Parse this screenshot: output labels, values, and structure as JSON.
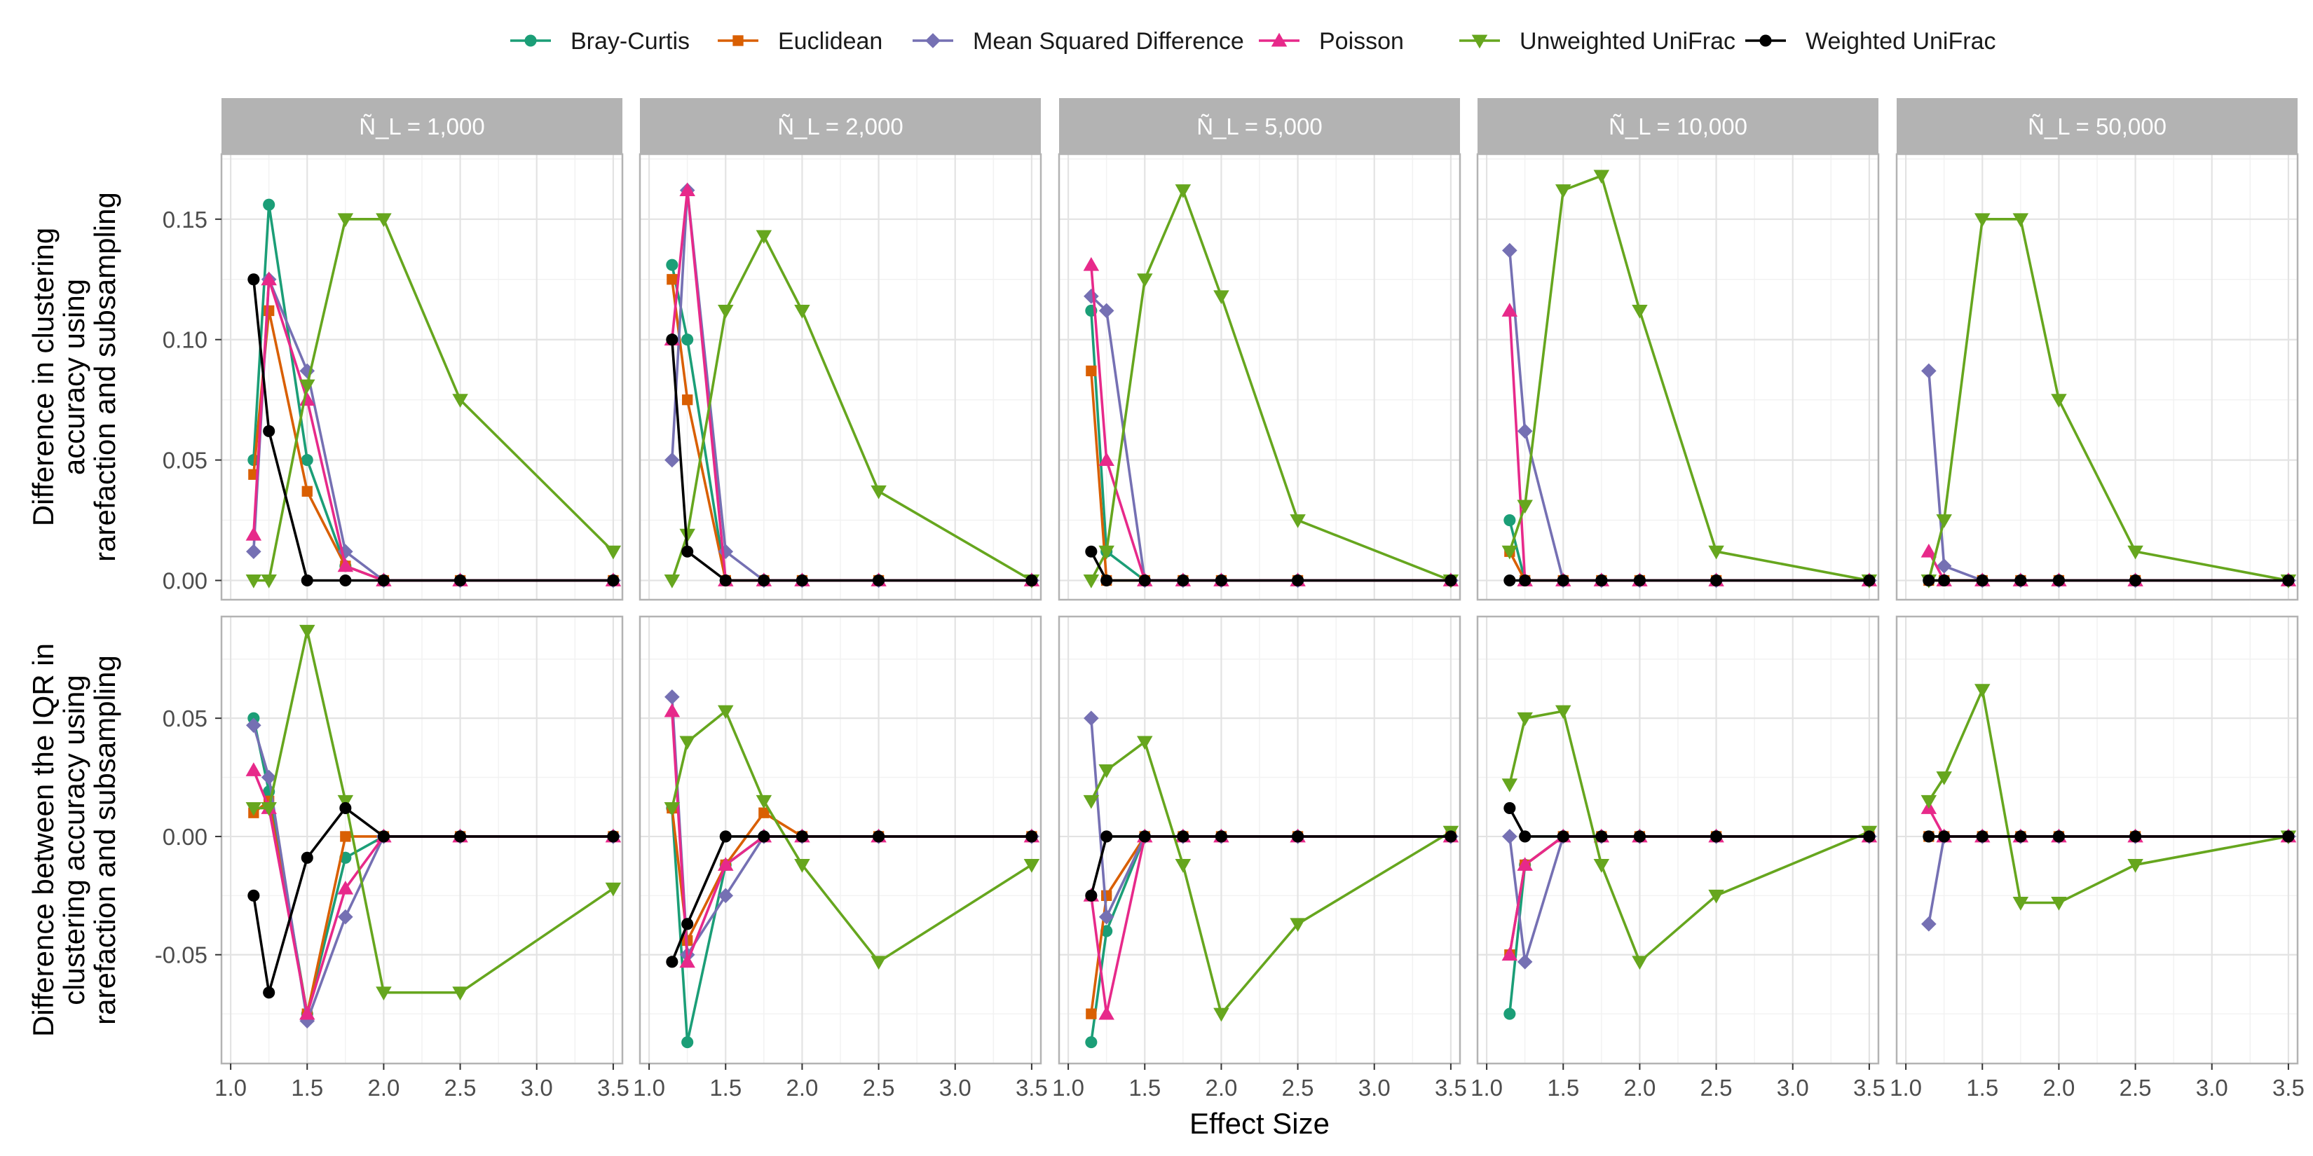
{
  "chart_data": {
    "type": "line",
    "xlabel": "Effect Size",
    "legend_position": "top",
    "grid": true,
    "facet_labels": [
      "Ñ_L = 1,000",
      "Ñ_L = 2,000",
      "Ñ_L = 5,000",
      "Ñ_L = 10,000",
      "Ñ_L = 50,000"
    ],
    "x_ticks": [
      "1.0",
      "1.5",
      "2.0",
      "2.5",
      "3.0",
      "3.5"
    ],
    "x": [
      1.15,
      1.25,
      1.5,
      1.75,
      2.0,
      2.5,
      3.5
    ],
    "xlim": [
      0.94,
      3.56
    ],
    "rows": [
      {
        "ylabel": [
          "Difference in clustering",
          "accuracy using",
          "rarefaction and subsampling"
        ],
        "ylim": [
          -0.008,
          0.177
        ],
        "y_ticks": [
          "0.00",
          "0.05",
          "0.10",
          "0.15"
        ],
        "y_tick_values": [
          0,
          0.05,
          0.1,
          0.15
        ],
        "panels": [
          {
            "series": [
              {
                "name": "Bray-Curtis",
                "values": [
                  0.05,
                  0.156,
                  0.05,
                  0.006,
                  0,
                  0,
                  0
                ]
              },
              {
                "name": "Euclidean",
                "values": [
                  0.044,
                  0.112,
                  0.037,
                  0.006,
                  0,
                  0,
                  0
                ]
              },
              {
                "name": "Mean Squared Difference",
                "values": [
                  0.012,
                  0.125,
                  0.087,
                  0.012,
                  0,
                  0,
                  0
                ]
              },
              {
                "name": "Poisson",
                "values": [
                  0.019,
                  0.125,
                  0.075,
                  0.006,
                  0,
                  0,
                  0
                ]
              },
              {
                "name": "Unweighted UniFrac",
                "values": [
                  0,
                  0,
                  0.081,
                  0.15,
                  0.15,
                  0.075,
                  0.012
                ]
              },
              {
                "name": "Weighted UniFrac",
                "values": [
                  0.125,
                  0.062,
                  0,
                  0,
                  0,
                  0,
                  0
                ]
              }
            ]
          },
          {
            "series": [
              {
                "name": "Bray-Curtis",
                "values": [
                  0.131,
                  0.1,
                  0,
                  0,
                  0,
                  0,
                  0
                ]
              },
              {
                "name": "Euclidean",
                "values": [
                  0.125,
                  0.075,
                  0,
                  0,
                  0,
                  0,
                  0
                ]
              },
              {
                "name": "Mean Squared Difference",
                "values": [
                  0.05,
                  0.162,
                  0.012,
                  0,
                  0,
                  0,
                  0
                ]
              },
              {
                "name": "Poisson",
                "values": [
                  0.1,
                  0.162,
                  0,
                  0,
                  0,
                  0,
                  0
                ]
              },
              {
                "name": "Unweighted UniFrac",
                "values": [
                  0,
                  0.019,
                  0.112,
                  0.143,
                  0.112,
                  0.037,
                  0
                ]
              },
              {
                "name": "Weighted UniFrac",
                "values": [
                  0.1,
                  0.012,
                  0,
                  0,
                  0,
                  0,
                  0
                ]
              }
            ]
          },
          {
            "series": [
              {
                "name": "Bray-Curtis",
                "values": [
                  0.112,
                  0.012,
                  0,
                  0,
                  0,
                  0,
                  0
                ]
              },
              {
                "name": "Euclidean",
                "values": [
                  0.087,
                  0,
                  0,
                  0,
                  0,
                  0,
                  0
                ]
              },
              {
                "name": "Mean Squared Difference",
                "values": [
                  0.118,
                  0.112,
                  0,
                  0,
                  0,
                  0,
                  0
                ]
              },
              {
                "name": "Poisson",
                "values": [
                  0.131,
                  0.05,
                  0,
                  0,
                  0,
                  0,
                  0
                ]
              },
              {
                "name": "Unweighted UniFrac",
                "values": [
                  0,
                  0.012,
                  0.125,
                  0.162,
                  0.118,
                  0.025,
                  0
                ]
              },
              {
                "name": "Weighted UniFrac",
                "values": [
                  0.012,
                  0,
                  0,
                  0,
                  0,
                  0,
                  0
                ]
              }
            ]
          },
          {
            "series": [
              {
                "name": "Bray-Curtis",
                "values": [
                  0.025,
                  0,
                  0,
                  0,
                  0,
                  0,
                  0
                ]
              },
              {
                "name": "Euclidean",
                "values": [
                  0.012,
                  0,
                  0,
                  0,
                  0,
                  0,
                  0
                ]
              },
              {
                "name": "Mean Squared Difference",
                "values": [
                  0.137,
                  0.062,
                  0,
                  0,
                  0,
                  0,
                  0
                ]
              },
              {
                "name": "Poisson",
                "values": [
                  0.112,
                  0,
                  0,
                  0,
                  0,
                  0,
                  0
                ]
              },
              {
                "name": "Unweighted UniFrac",
                "values": [
                  0.012,
                  0.031,
                  0.162,
                  0.168,
                  0.112,
                  0.012,
                  0
                ]
              },
              {
                "name": "Weighted UniFrac",
                "values": [
                  0,
                  0,
                  0,
                  0,
                  0,
                  0,
                  0
                ]
              }
            ]
          },
          {
            "series": [
              {
                "name": "Bray-Curtis",
                "values": [
                  0,
                  0,
                  0,
                  0,
                  0,
                  0,
                  0
                ]
              },
              {
                "name": "Euclidean",
                "values": [
                  0,
                  0,
                  0,
                  0,
                  0,
                  0,
                  0
                ]
              },
              {
                "name": "Mean Squared Difference",
                "values": [
                  0.087,
                  0.006,
                  0,
                  0,
                  0,
                  0,
                  0
                ]
              },
              {
                "name": "Poisson",
                "values": [
                  0.012,
                  0,
                  0,
                  0,
                  0,
                  0,
                  0
                ]
              },
              {
                "name": "Unweighted UniFrac",
                "values": [
                  0,
                  0.025,
                  0.15,
                  0.15,
                  0.075,
                  0.012,
                  0
                ]
              },
              {
                "name": "Weighted UniFrac",
                "values": [
                  0,
                  0,
                  0,
                  0,
                  0,
                  0,
                  0
                ]
              }
            ]
          }
        ]
      },
      {
        "ylabel": [
          "Difference between the IQR in",
          "clustering accuracy using",
          "rarefaction and subsampling"
        ],
        "ylim": [
          -0.096,
          0.093
        ],
        "y_ticks": [
          "-0.05",
          "0.00",
          "0.05"
        ],
        "y_tick_values": [
          -0.05,
          0,
          0.05
        ],
        "panels": [
          {
            "series": [
              {
                "name": "Bray-Curtis",
                "values": [
                  0.05,
                  0.019,
                  -0.075,
                  -0.009,
                  0,
                  0,
                  0
                ]
              },
              {
                "name": "Euclidean",
                "values": [
                  0.01,
                  0.015,
                  -0.075,
                  0,
                  0,
                  0,
                  0
                ]
              },
              {
                "name": "Mean Squared Difference",
                "values": [
                  0.047,
                  0.025,
                  -0.078,
                  -0.034,
                  0,
                  0,
                  0
                ]
              },
              {
                "name": "Poisson",
                "values": [
                  0.028,
                  0.012,
                  -0.075,
                  -0.022,
                  0,
                  0,
                  0
                ]
              },
              {
                "name": "Unweighted UniFrac",
                "values": [
                  0.012,
                  0.012,
                  0.087,
                  0.015,
                  -0.066,
                  -0.066,
                  -0.022
                ]
              },
              {
                "name": "Weighted UniFrac",
                "values": [
                  -0.025,
                  -0.066,
                  -0.009,
                  0.012,
                  0,
                  0,
                  0
                ]
              }
            ]
          },
          {
            "series": [
              {
                "name": "Bray-Curtis",
                "values": [
                  0.012,
                  -0.087,
                  -0.012,
                  0,
                  0,
                  0,
                  0
                ]
              },
              {
                "name": "Euclidean",
                "values": [
                  0.012,
                  -0.044,
                  -0.012,
                  0.01,
                  0,
                  0,
                  0
                ]
              },
              {
                "name": "Mean Squared Difference",
                "values": [
                  0.059,
                  -0.05,
                  -0.025,
                  0,
                  0,
                  0,
                  0
                ]
              },
              {
                "name": "Poisson",
                "values": [
                  0.053,
                  -0.053,
                  -0.012,
                  0,
                  0,
                  0,
                  0
                ]
              },
              {
                "name": "Unweighted UniFrac",
                "values": [
                  0.012,
                  0.04,
                  0.053,
                  0.015,
                  -0.012,
                  -0.053,
                  -0.012
                ]
              },
              {
                "name": "Weighted UniFrac",
                "values": [
                  -0.053,
                  -0.037,
                  0,
                  0,
                  0,
                  0,
                  0
                ]
              }
            ]
          },
          {
            "series": [
              {
                "name": "Bray-Curtis",
                "values": [
                  -0.087,
                  -0.04,
                  0,
                  0,
                  0,
                  0,
                  0
                ]
              },
              {
                "name": "Euclidean",
                "values": [
                  -0.075,
                  -0.025,
                  0,
                  0,
                  0,
                  0,
                  0
                ]
              },
              {
                "name": "Mean Squared Difference",
                "values": [
                  0.05,
                  -0.034,
                  0,
                  0,
                  0,
                  0,
                  0
                ]
              },
              {
                "name": "Poisson",
                "values": [
                  -0.025,
                  -0.075,
                  0,
                  0,
                  0,
                  0,
                  0
                ]
              },
              {
                "name": "Unweighted UniFrac",
                "values": [
                  0.015,
                  0.028,
                  0.04,
                  -0.012,
                  -0.075,
                  -0.037,
                  0.002
                ]
              },
              {
                "name": "Weighted UniFrac",
                "values": [
                  -0.025,
                  0,
                  0,
                  0,
                  0,
                  0,
                  0
                ]
              }
            ]
          },
          {
            "series": [
              {
                "name": "Bray-Curtis",
                "values": [
                  -0.075,
                  -0.012,
                  0,
                  0,
                  0,
                  0,
                  0
                ]
              },
              {
                "name": "Euclidean",
                "values": [
                  -0.05,
                  -0.012,
                  0,
                  0,
                  0,
                  0,
                  0
                ]
              },
              {
                "name": "Mean Squared Difference",
                "values": [
                  0,
                  -0.053,
                  0,
                  0,
                  0,
                  0,
                  0
                ]
              },
              {
                "name": "Poisson",
                "values": [
                  -0.05,
                  -0.012,
                  0,
                  0,
                  0,
                  0,
                  0
                ]
              },
              {
                "name": "Unweighted UniFrac",
                "values": [
                  0.022,
                  0.05,
                  0.053,
                  -0.012,
                  -0.053,
                  -0.025,
                  0.002
                ]
              },
              {
                "name": "Weighted UniFrac",
                "values": [
                  0.012,
                  0,
                  0,
                  0,
                  0,
                  0,
                  0
                ]
              }
            ]
          },
          {
            "series": [
              {
                "name": "Bray-Curtis",
                "values": [
                  0,
                  0,
                  0,
                  0,
                  0,
                  0,
                  0
                ]
              },
              {
                "name": "Euclidean",
                "values": [
                  0,
                  0,
                  0,
                  0,
                  0,
                  0,
                  0
                ]
              },
              {
                "name": "Mean Squared Difference",
                "values": [
                  -0.037,
                  0,
                  0,
                  0,
                  0,
                  0,
                  0
                ]
              },
              {
                "name": "Poisson",
                "values": [
                  0.012,
                  0,
                  0,
                  0,
                  0,
                  0,
                  0
                ]
              },
              {
                "name": "Unweighted UniFrac",
                "values": [
                  0.015,
                  0.025,
                  0.062,
                  -0.028,
                  -0.028,
                  -0.012,
                  0
                ]
              },
              {
                "name": "Weighted UniFrac",
                "values": [
                  0,
                  0,
                  0,
                  0,
                  0,
                  0,
                  0
                ]
              }
            ]
          }
        ]
      }
    ],
    "legend": [
      {
        "name": "Bray-Curtis",
        "color": "#1b9e77",
        "marker": "circle"
      },
      {
        "name": "Euclidean",
        "color": "#d95f02",
        "marker": "square"
      },
      {
        "name": "Mean Squared Difference",
        "color": "#7570b3",
        "marker": "diamond"
      },
      {
        "name": "Poisson",
        "color": "#e7298a",
        "marker": "triangle-up"
      },
      {
        "name": "Unweighted UniFrac",
        "color": "#66a61e",
        "marker": "triangle-down"
      },
      {
        "name": "Weighted UniFrac",
        "color": "#000000",
        "marker": "circle"
      }
    ],
    "strip_color": "#b3b3b3",
    "panel_border_color": "#b3b3b3"
  }
}
